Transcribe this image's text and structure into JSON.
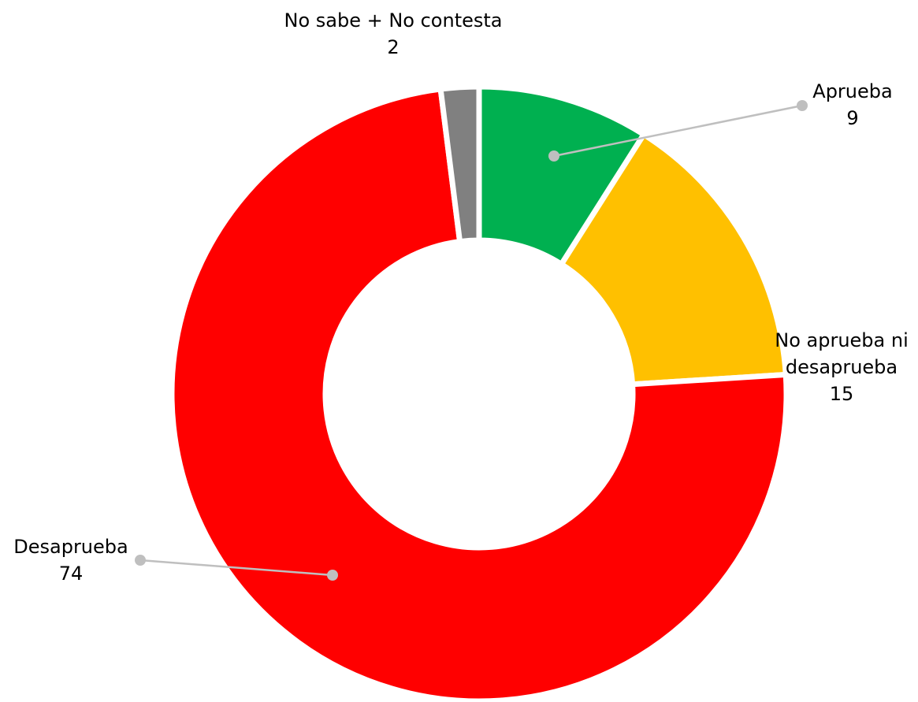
{
  "chart_data": {
    "type": "pie",
    "style": "donut",
    "title": "",
    "slices": [
      {
        "label": "Aprueba",
        "value": 9,
        "value_label": "9",
        "color": "#00B050"
      },
      {
        "label": "No aprueba ni desaprueba",
        "label_lines": [
          "No aprueba ni",
          "desaprueba"
        ],
        "value": 15,
        "value_label": "15",
        "color": "#FFC000"
      },
      {
        "label": "Desaprueba",
        "value": 74,
        "value_label": "74",
        "color": "#FF0000"
      },
      {
        "label": "No sabe + No contesta",
        "value": 2,
        "value_label": "2",
        "color": "#808080"
      }
    ],
    "leader_line_color": "#BFBFBF"
  }
}
